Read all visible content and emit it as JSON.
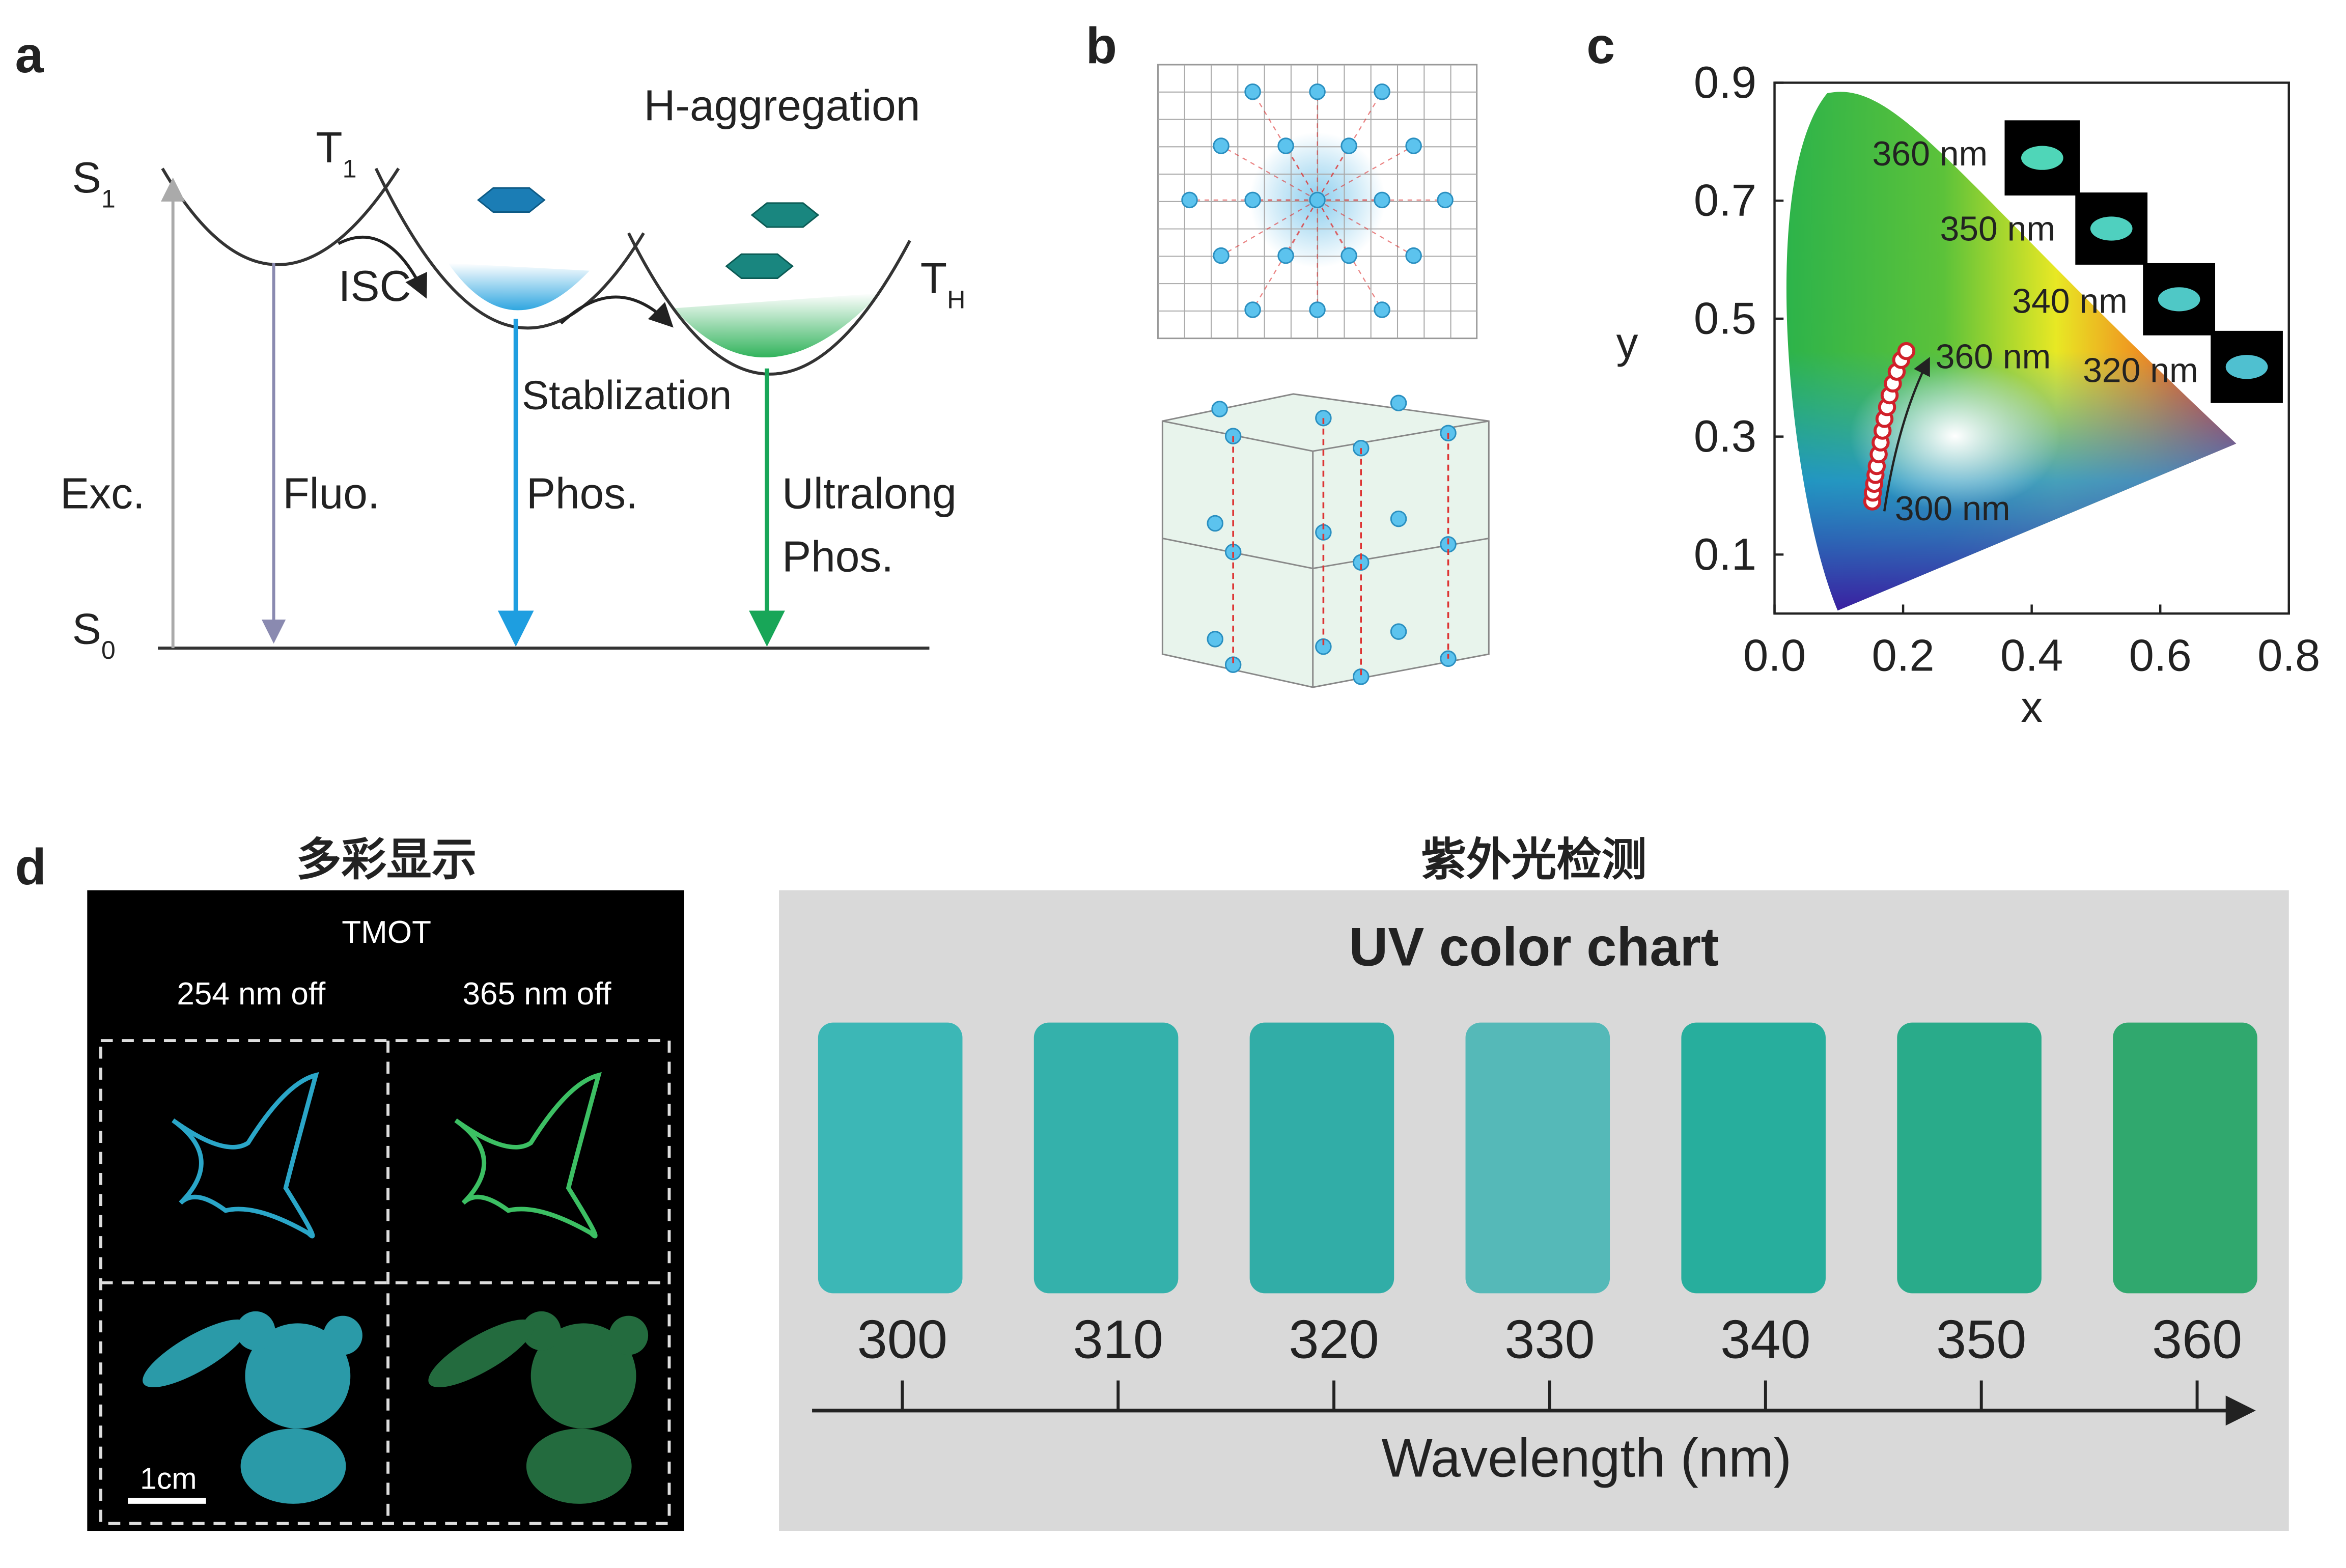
{
  "panels": {
    "a": {
      "label": "a",
      "title": "H-aggregation",
      "s1": {
        "main": "S",
        "sub": "1"
      },
      "t1": {
        "main": "T",
        "sub": "1"
      },
      "th": {
        "main": "T",
        "sub": "H"
      },
      "s0": {
        "main": "S",
        "sub": "0"
      },
      "isc": "ISC",
      "stabilization": "Stablization",
      "exc": "Exc.",
      "fluo": "Fluo.",
      "phos": "Phos.",
      "ultralong": [
        "Ultralong",
        "Phos."
      ]
    },
    "b": {
      "label": "b"
    },
    "c": {
      "label": "c",
      "xlabel": "x",
      "ylabel": "y",
      "xlim": [
        0,
        0.8
      ],
      "ylim": [
        0,
        0.9
      ],
      "xticks": [
        {
          "value": 0,
          "label": "0.0"
        },
        0.2,
        0.4,
        0.6,
        0.8
      ],
      "yticks": [
        0.1,
        0.3,
        0.5,
        0.7,
        0.9
      ],
      "insets": [
        "360 nm",
        "350 nm",
        "340 nm",
        "320 nm"
      ],
      "annotations": [
        "360 nm",
        "300 nm"
      ],
      "points": {
        "x": [
          0.152,
          0.153,
          0.155,
          0.157,
          0.159,
          0.162,
          0.165,
          0.168,
          0.171,
          0.175,
          0.179,
          0.184,
          0.19,
          0.197,
          0.205
        ],
        "y": [
          0.19,
          0.205,
          0.22,
          0.235,
          0.25,
          0.27,
          0.29,
          0.31,
          0.33,
          0.35,
          0.37,
          0.39,
          0.41,
          0.43,
          0.445
        ]
      }
    },
    "d": {
      "label": "d",
      "left_title": "多彩显示",
      "sample": "TMOT",
      "col1": "254 nm off",
      "col2": "365 nm off",
      "scale": "1cm",
      "right_title": "紫外光检测",
      "chart_title": "UV color chart",
      "axis_label": "Wavelength (nm)",
      "swatches": [
        {
          "label": 300,
          "color": "#3cb7b6"
        },
        {
          "label": 310,
          "color": "#34b1ab"
        },
        {
          "label": 320,
          "color": "#31ada7"
        },
        {
          "label": 330,
          "color": "#55b9b8"
        },
        {
          "label": 340,
          "color": "#27ae9d"
        },
        {
          "label": 350,
          "color": "#29ab8a"
        },
        {
          "label": 360,
          "color": "#30a86e"
        }
      ]
    }
  }
}
